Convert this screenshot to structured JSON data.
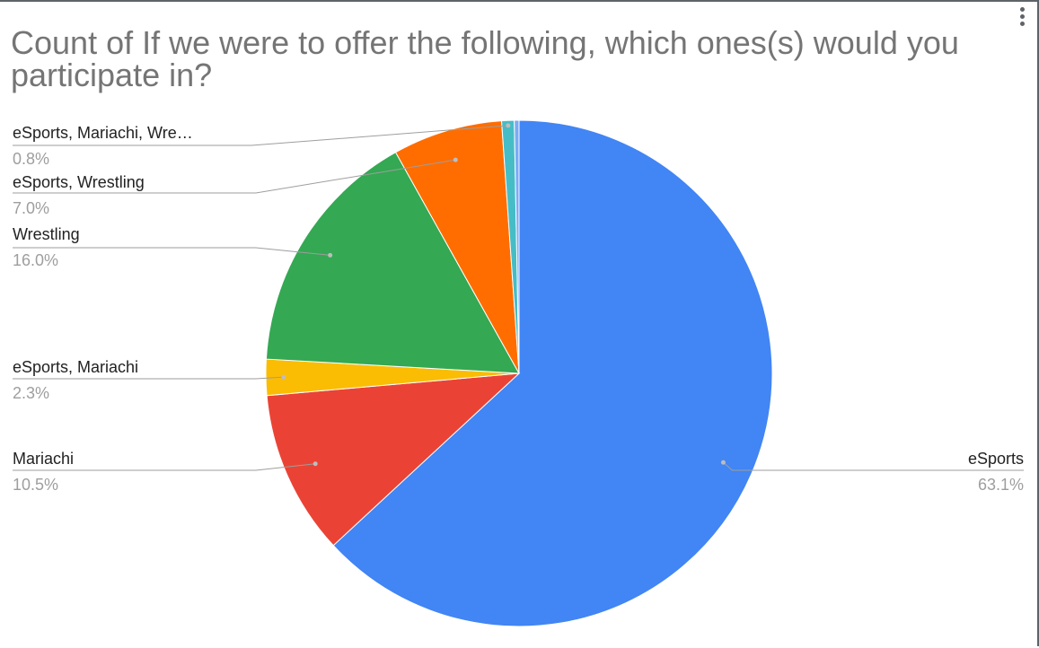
{
  "chart_data": {
    "type": "pie",
    "title": "Count of If we were to offer the following, which ones(s) would you participate in?",
    "slices": [
      {
        "label": "eSports",
        "value_label": "63.1%",
        "value": 63.1,
        "color": "#4285f4"
      },
      {
        "label": "Mariachi",
        "value_label": "10.5%",
        "value": 10.5,
        "color": "#ea4335"
      },
      {
        "label": "eSports, Mariachi",
        "value_label": "2.3%",
        "value": 2.3,
        "color": "#fbbc04"
      },
      {
        "label": "Wrestling",
        "value_label": "16.0%",
        "value": 16.0,
        "color": "#34a853"
      },
      {
        "label": "eSports, Wrestling",
        "value_label": "7.0%",
        "value": 7.0,
        "color": "#ff6d01"
      },
      {
        "label": "eSports, Mariachi, Wre…",
        "value_label": "0.8%",
        "value": 0.8,
        "color": "#46bdc6"
      },
      {
        "label": "",
        "value_label": "",
        "value": 0.3,
        "color": "#7baaf7"
      }
    ],
    "legend": "none"
  },
  "icons": {
    "menu": "more-vert-icon"
  }
}
